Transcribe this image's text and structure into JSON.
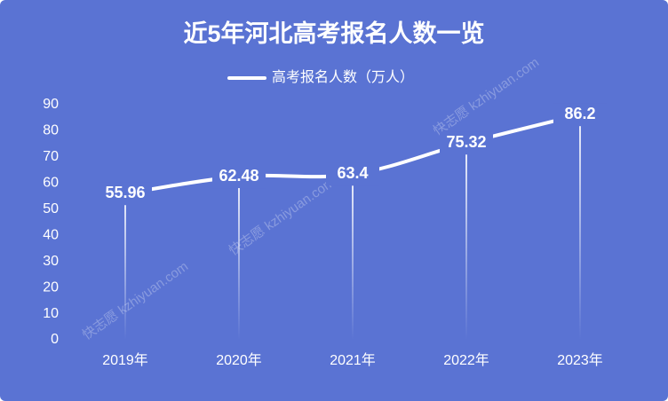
{
  "chart_data": {
    "type": "line",
    "title": "近5年河北高考报名人数一览",
    "categories": [
      "2019年",
      "2020年",
      "2021年",
      "2022年",
      "2023年"
    ],
    "series": [
      {
        "name": "高考报名人数（万人）",
        "color": "#ffffff",
        "values": [
          55.96,
          62.48,
          63.4,
          75.32,
          86.2
        ]
      }
    ],
    "ylim": [
      0,
      90
    ],
    "yticks": [
      0,
      10,
      20,
      30,
      40,
      50,
      60,
      70,
      80,
      90
    ],
    "legend": "top",
    "background": "#5a73d3",
    "watermark": "快志愿 kzhiyuan.com"
  }
}
